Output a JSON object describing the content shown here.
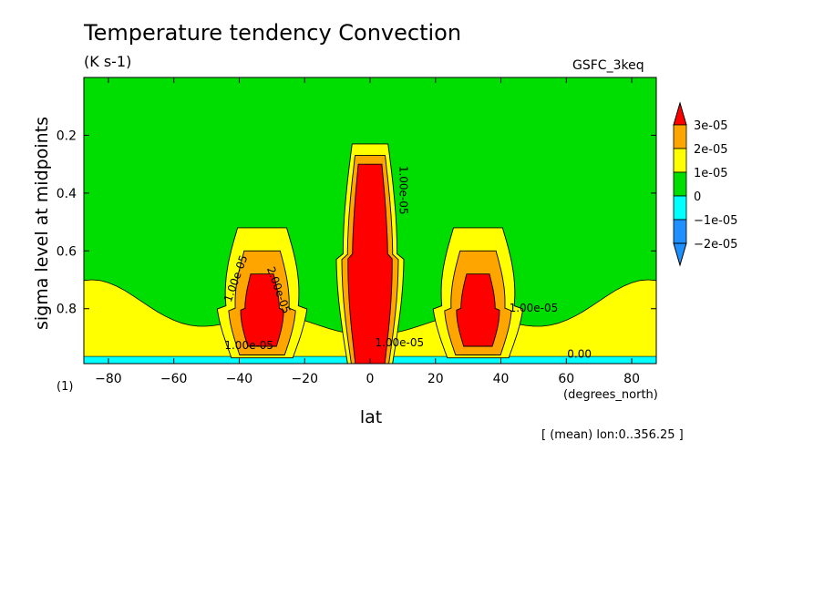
{
  "title": "Temperature tendency Convection",
  "units": "(K s-1)",
  "dataset": "GSFC_3keq",
  "index_label": "(1)",
  "averaging_note": "[ (mean) lon:0..356.25 ]",
  "chart_data": {
    "type": "heatmap",
    "title": "Temperature tendency Convection",
    "xlabel": "lat",
    "xunits": "(degrees_north)",
    "ylabel": "sigma level at midpoints",
    "xlim": [
      -87.5,
      87.5
    ],
    "ylim": [
      0.0,
      0.99
    ],
    "y_inverted": true,
    "x_ticks": [
      -80,
      -60,
      -40,
      -20,
      0,
      20,
      40,
      60,
      80
    ],
    "x_tick_labels": [
      "−80",
      "−60",
      "−40",
      "−20",
      "0",
      "20",
      "40",
      "60",
      "80"
    ],
    "y_ticks": [
      0.2,
      0.4,
      0.6,
      0.8
    ],
    "y_tick_labels": [
      "0.2",
      "0.4",
      "0.6",
      "0.8"
    ],
    "colorbar": {
      "labels": [
        "3e-05",
        "2e-05",
        "1e-05",
        "0",
        "−1e-05",
        "−2e-05"
      ],
      "colors": [
        "#ff0000",
        "#ffa500",
        "#ffff00",
        "#00dd00",
        "#00ffff",
        "#1e90ff",
        "#0064ff"
      ],
      "bounds": [
        -3e-05,
        -2e-05,
        -1e-05,
        0,
        1e-05,
        2e-05,
        3e-05,
        4e-05
      ]
    },
    "regions": [
      {
        "level": 1,
        "name": "tropical",
        "center": [
          0,
          0.62
        ],
        "sx": 5.5,
        "top": 0.23,
        "bottom": 0.99
      },
      {
        "level": 2,
        "name": "tropical",
        "center": [
          0,
          0.62
        ],
        "sx": 4.6,
        "top": 0.27,
        "bottom": 0.99
      },
      {
        "level": 3,
        "name": "tropical",
        "center": [
          0,
          0.62
        ],
        "sx": 3.6,
        "top": 0.3,
        "bottom": 0.99
      },
      {
        "level": 1,
        "name": "south-midlat",
        "center": [
          -33,
          0.79
        ],
        "sx": 7.5,
        "top": 0.52,
        "bottom": 0.97
      },
      {
        "level": 2,
        "name": "south-midlat",
        "center": [
          -33,
          0.8
        ],
        "sx": 5.5,
        "top": 0.6,
        "bottom": 0.96
      },
      {
        "level": 3,
        "name": "south-midlat",
        "center": [
          -33,
          0.8
        ],
        "sx": 3.5,
        "top": 0.68,
        "bottom": 0.93
      },
      {
        "level": 1,
        "name": "north-midlat",
        "center": [
          33,
          0.79
        ],
        "sx": 7.5,
        "top": 0.52,
        "bottom": 0.97
      },
      {
        "level": 2,
        "name": "north-midlat",
        "center": [
          33,
          0.8
        ],
        "sx": 5.5,
        "top": 0.6,
        "bottom": 0.96
      },
      {
        "level": 3,
        "name": "north-midlat",
        "center": [
          33,
          0.8
        ],
        "sx": 3.5,
        "top": 0.68,
        "bottom": 0.93
      }
    ],
    "contour_labels": [
      {
        "text": "1.00e-05",
        "x": -40,
        "y": 0.7,
        "rotate": -70
      },
      {
        "text": "2.00e-05",
        "x": -29,
        "y": 0.74,
        "rotate": 70
      },
      {
        "text": "1.00e-05",
        "x": 9,
        "y": 0.39,
        "rotate": 90
      },
      {
        "text": "1.00e-05",
        "x": 50,
        "y": 0.81,
        "rotate": 0
      },
      {
        "text": "1.00e-05",
        "x": 9,
        "y": 0.93,
        "rotate": 0
      },
      {
        "text": "1.00e-05",
        "x": -37,
        "y": 0.94,
        "rotate": 0
      },
      {
        "text": "0.00",
        "x": 64,
        "y": 0.97,
        "rotate": 0
      }
    ]
  }
}
